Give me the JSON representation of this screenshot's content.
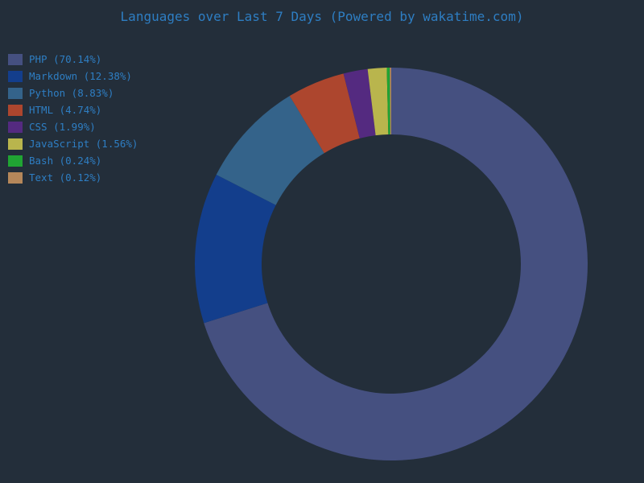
{
  "page": {
    "background_color": "#232e3a",
    "text_color": "#2e7ec3"
  },
  "chart_data": {
    "type": "pie",
    "subtype": "donut",
    "title": "Languages over Last 7 Days (Powered by wakatime.com)",
    "unit": "%",
    "start_angle": "top",
    "direction": "clockwise",
    "legend_position": "top-left",
    "segments": [
      {
        "label": "PHP",
        "value": 70.14,
        "display": "PHP (70.14%)",
        "color": "#455080"
      },
      {
        "label": "Markdown",
        "value": 12.38,
        "display": "Markdown (12.38%)",
        "color": "#133e8c"
      },
      {
        "label": "Python",
        "value": 8.83,
        "display": "Python (8.83%)",
        "color": "#34638a"
      },
      {
        "label": "HTML",
        "value": 4.74,
        "display": "HTML (4.74%)",
        "color": "#ad462e"
      },
      {
        "label": "CSS",
        "value": 1.99,
        "display": "CSS (1.99%)",
        "color": "#542a80"
      },
      {
        "label": "JavaScript",
        "value": 1.56,
        "display": "JavaScript (1.56%)",
        "color": "#b9b54d"
      },
      {
        "label": "Bash",
        "value": 0.24,
        "display": "Bash (0.24%)",
        "color": "#20a433"
      },
      {
        "label": "Text",
        "value": 0.12,
        "display": "Text (0.12%)",
        "color": "#b5875a"
      }
    ]
  }
}
